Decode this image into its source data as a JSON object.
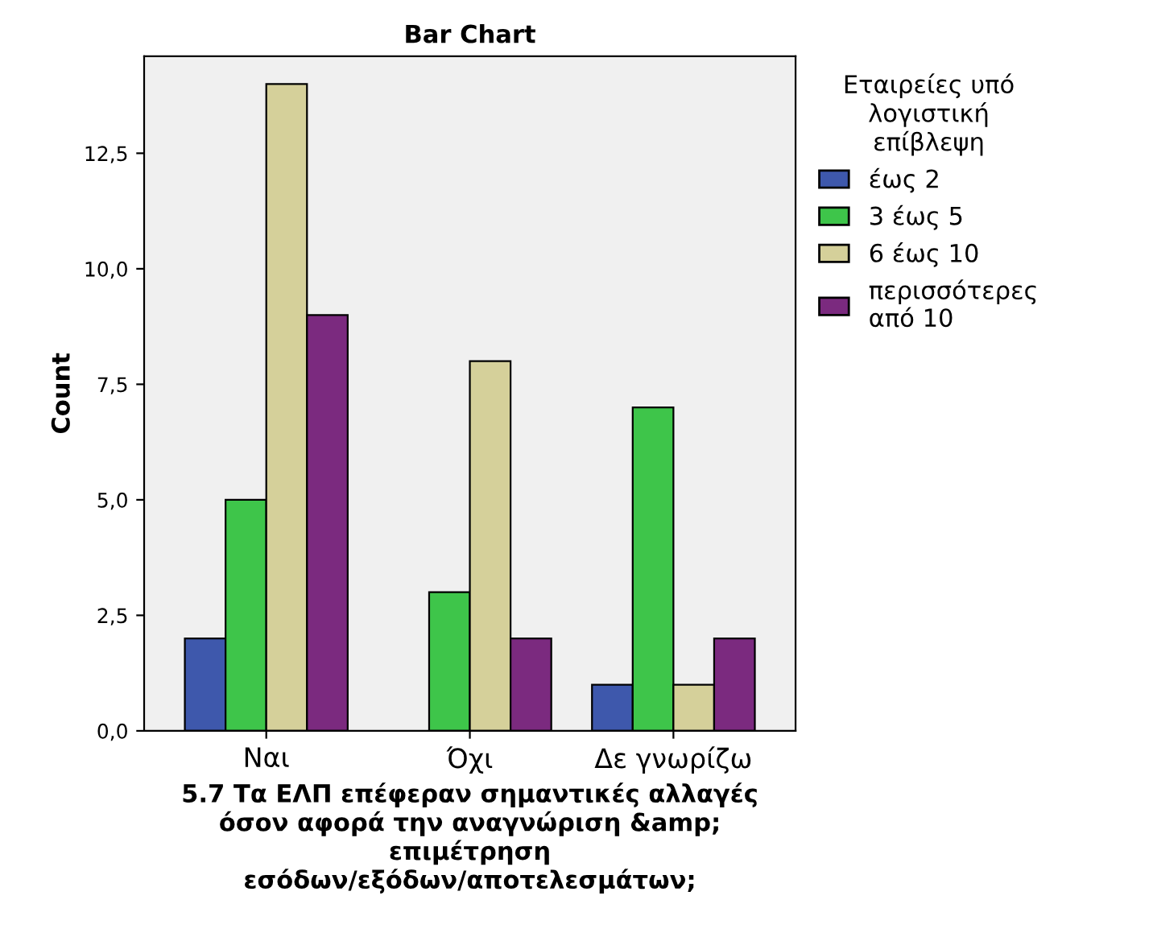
{
  "chart_data": {
    "type": "bar",
    "title": "Bar Chart",
    "xlabel": "5.7 Τα ΕΛΠ επέφεραν σημαντικές αλλαγές\nόσον αφορά την αναγνώριση &amp;\nεπιμέτρηση\nεσόδων/εξόδων/αποτελεσμάτων;",
    "ylabel": "Count",
    "legend_title": "Εταιρείες υπό\nλογιστική\nεπίβλεψη",
    "categories": [
      "Ναι",
      "Όχι",
      "Δε γνωρίζω"
    ],
    "series": [
      {
        "name": "έως 2",
        "color": "#3e58ac",
        "values": [
          2,
          null,
          1
        ]
      },
      {
        "name": "3 έως 5",
        "color": "#3ec54a",
        "values": [
          5,
          3,
          7
        ]
      },
      {
        "name": "6 έως 10",
        "color": "#d5d09a",
        "values": [
          14,
          8,
          1
        ]
      },
      {
        "name": "περισσότερες\nαπό 10",
        "color": "#7b2a7f",
        "values": [
          9,
          2,
          2
        ]
      }
    ],
    "ylim": [
      0,
      14.6
    ],
    "yticks": [
      {
        "value": 0,
        "label": "0,0"
      },
      {
        "value": 2.5,
        "label": "2,5"
      },
      {
        "value": 5,
        "label": "5,0"
      },
      {
        "value": 7.5,
        "label": "7,5"
      },
      {
        "value": 10,
        "label": "10,0"
      },
      {
        "value": 12.5,
        "label": "12,5"
      }
    ],
    "grid": false,
    "legend": "right"
  }
}
